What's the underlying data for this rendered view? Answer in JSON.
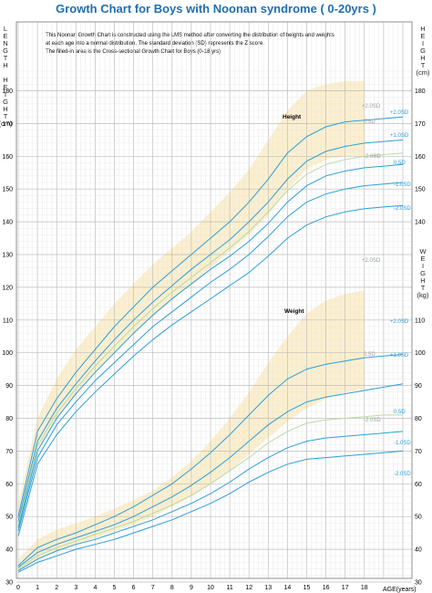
{
  "title": "Growth Chart for Boys with Noonan syndrome  ( 0-20yrs )",
  "description": [
    "This Noonan Growth Chart is constructed using the LMS method after converting the distribution of heights and weights",
    "at each age into a normal distribution. The standard deviation (SD) represents the Z score.",
    "The filled-in area is the Cross-sectional Growth Chart for Boys (0-18 yrs)"
  ],
  "left_axis_label": [
    "L",
    "E",
    "N",
    "G",
    "T",
    "H",
    "",
    "H",
    "E",
    "I",
    "G",
    "H",
    "T",
    "(cm)"
  ],
  "right_axis_label_height": [
    "H",
    "E",
    "I",
    "G",
    "H",
    "T",
    "(cm)"
  ],
  "right_axis_label_weight": [
    "W",
    "E",
    "I",
    "G",
    "H",
    "T",
    "(kg)"
  ],
  "x_axis_label": "AGE(years)",
  "annotations": {
    "height": "Height",
    "weight": "Weight"
  },
  "colors": {
    "title": "#1f6fb2",
    "curve": "#2e9fd8",
    "curve_light": "#b9dba6",
    "band": "#fbecc4",
    "grid": "#c9c9c9"
  },
  "chart_data": [
    {
      "type": "line",
      "title": "Height",
      "xlabel": "AGE(years)",
      "ylabel": "HEIGHT (cm)",
      "xlim": [
        0,
        20
      ],
      "ylim": [
        40,
        185
      ],
      "x": [
        0,
        1,
        2,
        3,
        4,
        5,
        6,
        7,
        8,
        9,
        10,
        11,
        12,
        13,
        14,
        15,
        16,
        17,
        18,
        19,
        20
      ],
      "series": [
        {
          "name": "+2.0SD",
          "values": [
            50,
            76,
            86,
            94,
            101,
            108,
            114,
            120,
            125,
            130,
            135,
            140,
            146,
            153,
            161,
            166,
            169,
            170.5,
            171,
            171.5,
            172
          ]
        },
        {
          "name": "1.0SD",
          "values": [
            48.5,
            73,
            83,
            90.5,
            97.5,
            104,
            110,
            115.5,
            120.5,
            125.5,
            130,
            134.5,
            140,
            146,
            153,
            158.5,
            161.5,
            163,
            164,
            164.5,
            165
          ]
        },
        {
          "name": "0.5D",
          "values": [
            47.5,
            71.5,
            81.5,
            89,
            96,
            102,
            108,
            113.5,
            118.5,
            123,
            127.5,
            132,
            137,
            143,
            149.5,
            154.5,
            157.5,
            159,
            160,
            160.5,
            161
          ]
        },
        {
          "name": "0.5D",
          "values": [
            46.5,
            70,
            80,
            87.5,
            94,
            100,
            106,
            111.5,
            116.5,
            121,
            125.5,
            129.5,
            134,
            139.5,
            146,
            151,
            154,
            155.5,
            156.5,
            157,
            157.5
          ]
        },
        {
          "name": "1.0SD",
          "values": [
            45.5,
            68,
            78,
            85,
            91.5,
            97,
            102.5,
            108,
            112.5,
            117,
            121.5,
            125.5,
            130,
            135.5,
            141.5,
            146,
            148.5,
            150,
            151,
            151.5,
            152
          ]
        },
        {
          "name": "-2.0SD",
          "values": [
            44,
            66,
            75,
            82,
            88,
            93.5,
            99,
            104,
            108.5,
            112.5,
            116.5,
            120.5,
            124.5,
            129.5,
            135,
            139,
            141.5,
            143,
            144,
            144.5,
            145
          ]
        }
      ],
      "band": {
        "name": "+2.0SD / -2.0SD",
        "upper": [
          54,
          80,
          92,
          101,
          108,
          115,
          121,
          127,
          132,
          137,
          143,
          149,
          156,
          165,
          174,
          180,
          182,
          183,
          183
        ],
        "lower": [
          46,
          70,
          80,
          87,
          94,
          100,
          106,
          111,
          116,
          121,
          126,
          131,
          136,
          142,
          150,
          156,
          159,
          160,
          160
        ],
        "x": [
          0,
          1,
          2,
          3,
          4,
          5,
          6,
          7,
          8,
          9,
          10,
          11,
          12,
          13,
          14,
          15,
          16,
          17,
          18
        ]
      }
    },
    {
      "type": "line",
      "title": "Weight",
      "xlabel": "AGE(years)",
      "ylabel": "WEIGHT (kg)",
      "xlim": [
        0,
        20
      ],
      "ylim": [
        30,
        130
      ],
      "x": [
        0,
        1,
        2,
        3,
        4,
        5,
        6,
        7,
        8,
        9,
        10,
        11,
        12,
        13,
        14,
        15,
        16,
        17,
        18,
        19,
        20
      ],
      "series": [
        {
          "name": "+2.0SD",
          "values": [
            35,
            40.5,
            43,
            45,
            47.5,
            50,
            53,
            56.5,
            60,
            64.5,
            69.5,
            75,
            81,
            87,
            92,
            95,
            96.5,
            97.5,
            98.5,
            99,
            99.5
          ]
        },
        {
          "name": "1.0SD",
          "values": [
            34.5,
            39,
            41.5,
            43.5,
            45.5,
            47.5,
            50,
            53,
            56,
            59.5,
            63.5,
            68,
            73,
            78,
            82,
            85,
            86.5,
            87.5,
            88.5,
            89.5,
            90.5
          ]
        },
        {
          "name": "0.5D",
          "values": [
            34,
            38,
            40.5,
            42.5,
            44.5,
            46.5,
            48.5,
            51,
            53.5,
            56.5,
            60,
            64,
            68,
            72.5,
            76,
            78.5,
            79.5,
            80,
            80.5,
            81,
            81
          ]
        },
        {
          "name": "1.0SD",
          "values": [
            33.5,
            37,
            39.5,
            41.5,
            43,
            45,
            47,
            49,
            51.5,
            54,
            57,
            60.5,
            64.5,
            68,
            71,
            73,
            74,
            74.5,
            75,
            75.5,
            76
          ]
        },
        {
          "name": "-2.0SD",
          "values": [
            33,
            36,
            38,
            40,
            41.5,
            43,
            45,
            47,
            49,
            51.5,
            54,
            57,
            60.5,
            63.5,
            66,
            67.5,
            68,
            68.5,
            69,
            69.5,
            70
          ]
        }
      ],
      "band": {
        "name": "+2.0SD / -2.0SD",
        "upper": [
          37,
          43,
          46,
          48,
          50,
          52.5,
          55,
          58,
          62,
          67,
          73,
          80,
          88,
          97,
          105,
          112,
          116,
          118,
          119
        ],
        "lower": [
          33,
          37,
          39.5,
          41.5,
          43.5,
          45.5,
          47.5,
          50,
          53,
          56,
          60,
          64,
          69,
          74,
          79,
          83,
          86,
          88,
          89
        ],
        "x": [
          0,
          1,
          2,
          3,
          4,
          5,
          6,
          7,
          8,
          9,
          10,
          11,
          12,
          13,
          14,
          15,
          16,
          17,
          18
        ]
      }
    }
  ],
  "left_ticks": [
    30,
    40,
    50,
    60,
    70,
    80,
    90,
    100,
    110,
    120,
    130,
    140,
    150,
    160,
    170,
    180
  ],
  "right_ticks_height": [
    140,
    150,
    160,
    170,
    180
  ],
  "right_ticks_weight": [
    30,
    40,
    50,
    60,
    70,
    80,
    90,
    100,
    110
  ],
  "x_ticks": [
    "0",
    "1",
    "2",
    "3",
    "4",
    "5",
    "6",
    "7",
    "8",
    "9",
    "10",
    "11",
    "12",
    "13",
    "14",
    "15",
    "16",
    "17",
    "18"
  ],
  "curve_labels_height": [
    "+2.0SD",
    "0.5D",
    "+2.0SD",
    "+1.0SD",
    "-2.0SD",
    "0.5D",
    "-1.0SD",
    "-2.0SD"
  ],
  "curve_labels_weight": [
    "+2.0SD",
    "+2.0SD",
    "0.5D",
    "+1.0SD",
    "-2.0SD",
    "0.5D",
    "-1.0SD",
    "-2.0SD"
  ]
}
